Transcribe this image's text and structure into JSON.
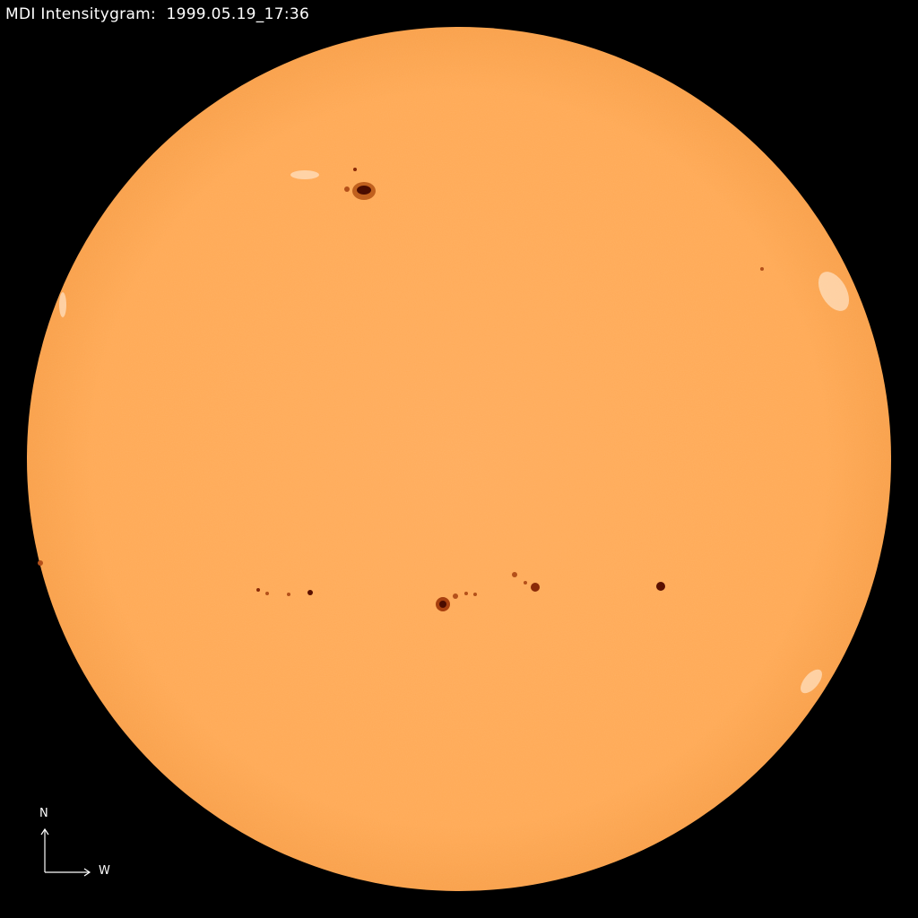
{
  "header": {
    "title": "MDI Intensitygram:  1999.05.19_17:36"
  },
  "compass": {
    "north": "N",
    "west": "W"
  },
  "colors": {
    "background": "#000000",
    "photosphere": "#FFAA5A",
    "limb": "#F5983F",
    "umbra": "#5a1000",
    "penumbra": "#b4501a",
    "faculae": "#FFE0C0"
  },
  "icons": [
    "compass-arrows-icon"
  ]
}
